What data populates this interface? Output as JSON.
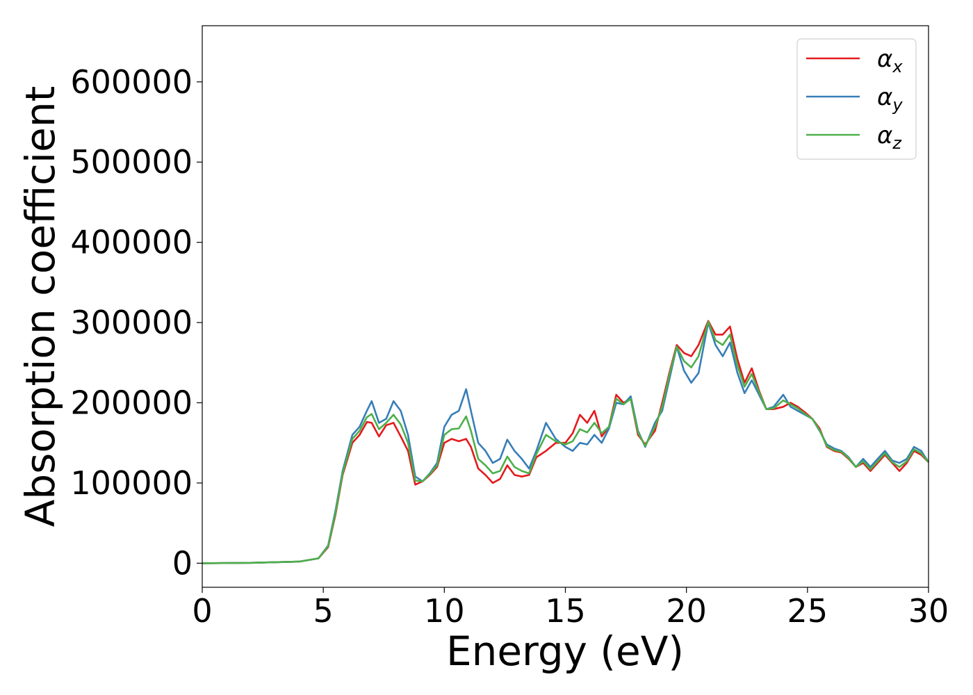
{
  "chart_data": {
    "type": "line",
    "title": "",
    "xlabel": "Energy (eV)",
    "ylabel": "Absorption coefficient",
    "xlim": [
      0,
      30
    ],
    "ylim": [
      -30000,
      670000
    ],
    "xticks": [
      0,
      5,
      10,
      15,
      20,
      25,
      30
    ],
    "xtick_labels": [
      "0",
      "5",
      "10",
      "15",
      "20",
      "25",
      "30"
    ],
    "yticks": [
      0,
      100000,
      200000,
      300000,
      400000,
      500000,
      600000
    ],
    "ytick_labels": [
      "0",
      "100000",
      "200000",
      "300000",
      "400000",
      "500000",
      "600000"
    ],
    "grid": false,
    "legend_position": "top-right",
    "series": [
      {
        "name": "α",
        "subscript": "x",
        "color": "#e41a1c",
        "x": [
          0,
          2,
          4,
          4.8,
          5.2,
          5.5,
          5.8,
          6.2,
          6.5,
          6.8,
          7.0,
          7.3,
          7.6,
          7.9,
          8.2,
          8.5,
          8.8,
          9.1,
          9.4,
          9.7,
          10.0,
          10.3,
          10.6,
          10.9,
          11.1,
          11.4,
          11.7,
          12.0,
          12.3,
          12.6,
          12.9,
          13.2,
          13.5,
          13.8,
          14.2,
          14.6,
          15.0,
          15.3,
          15.6,
          15.9,
          16.2,
          16.5,
          16.8,
          17.1,
          17.4,
          17.7,
          18.0,
          18.3,
          18.7,
          19.0,
          19.3,
          19.6,
          19.9,
          20.2,
          20.5,
          20.9,
          21.2,
          21.5,
          21.8,
          22.1,
          22.4,
          22.7,
          23.0,
          23.3,
          23.6,
          24.0,
          24.3,
          24.6,
          24.9,
          25.2,
          25.5,
          25.8,
          26.1,
          26.4,
          26.7,
          27.0,
          27.3,
          27.6,
          27.9,
          28.2,
          28.5,
          28.8,
          29.1,
          29.4,
          29.7,
          30.0
        ],
        "values": [
          0,
          500,
          2000,
          6000,
          20000,
          60000,
          110000,
          150000,
          160000,
          176000,
          175000,
          158000,
          172000,
          175000,
          158000,
          140000,
          98000,
          102000,
          110000,
          120000,
          150000,
          155000,
          152000,
          155000,
          145000,
          118000,
          110000,
          100000,
          105000,
          122000,
          110000,
          108000,
          110000,
          132000,
          140000,
          150000,
          150000,
          162000,
          185000,
          175000,
          190000,
          158000,
          170000,
          210000,
          200000,
          205000,
          160000,
          148000,
          165000,
          200000,
          238000,
          272000,
          262000,
          258000,
          272000,
          302000,
          285000,
          285000,
          295000,
          255000,
          225000,
          243000,
          215000,
          192000,
          192000,
          195000,
          200000,
          195000,
          188000,
          180000,
          168000,
          145000,
          140000,
          138000,
          130000,
          120000,
          125000,
          115000,
          125000,
          135000,
          125000,
          115000,
          125000,
          140000,
          135000,
          126000
        ]
      },
      {
        "name": "α",
        "subscript": "y",
        "color": "#377eb8",
        "x": [
          0,
          2,
          4,
          4.8,
          5.2,
          5.5,
          5.8,
          6.2,
          6.5,
          6.8,
          7.0,
          7.3,
          7.6,
          7.9,
          8.2,
          8.5,
          8.8,
          9.1,
          9.4,
          9.7,
          10.0,
          10.3,
          10.6,
          10.9,
          11.1,
          11.4,
          11.7,
          12.0,
          12.3,
          12.6,
          12.9,
          13.2,
          13.5,
          13.8,
          14.2,
          14.6,
          15.0,
          15.3,
          15.6,
          15.9,
          16.2,
          16.5,
          16.8,
          17.1,
          17.4,
          17.7,
          18.0,
          18.3,
          18.7,
          19.0,
          19.3,
          19.6,
          19.9,
          20.2,
          20.5,
          20.9,
          21.2,
          21.5,
          21.8,
          22.1,
          22.4,
          22.7,
          23.0,
          23.3,
          23.6,
          24.0,
          24.3,
          24.6,
          24.9,
          25.2,
          25.5,
          25.8,
          26.1,
          26.4,
          26.7,
          27.0,
          27.3,
          27.6,
          27.9,
          28.2,
          28.5,
          28.8,
          29.1,
          29.4,
          29.7,
          30.0
        ],
        "values": [
          0,
          500,
          2000,
          6000,
          22000,
          65000,
          115000,
          160000,
          170000,
          190000,
          202000,
          175000,
          180000,
          202000,
          190000,
          160000,
          108000,
          102000,
          112000,
          125000,
          170000,
          185000,
          190000,
          217000,
          190000,
          150000,
          140000,
          125000,
          130000,
          154000,
          140000,
          130000,
          118000,
          140000,
          175000,
          155000,
          145000,
          140000,
          150000,
          148000,
          160000,
          150000,
          168000,
          200000,
          198000,
          208000,
          165000,
          145000,
          175000,
          190000,
          230000,
          270000,
          240000,
          225000,
          237000,
          300000,
          272000,
          258000,
          275000,
          238000,
          212000,
          228000,
          210000,
          192000,
          195000,
          210000,
          195000,
          190000,
          185000,
          180000,
          165000,
          148000,
          143000,
          140000,
          132000,
          120000,
          130000,
          120000,
          130000,
          140000,
          128000,
          125000,
          130000,
          145000,
          140000,
          126000
        ]
      },
      {
        "name": "α",
        "subscript": "z",
        "color": "#4daf4a",
        "x": [
          0,
          2,
          4,
          4.8,
          5.2,
          5.5,
          5.8,
          6.2,
          6.5,
          6.8,
          7.0,
          7.3,
          7.6,
          7.9,
          8.2,
          8.5,
          8.8,
          9.1,
          9.4,
          9.7,
          10.0,
          10.3,
          10.6,
          10.9,
          11.1,
          11.4,
          11.7,
          12.0,
          12.3,
          12.6,
          12.9,
          13.2,
          13.5,
          13.8,
          14.2,
          14.6,
          15.0,
          15.3,
          15.6,
          15.9,
          16.2,
          16.5,
          16.8,
          17.1,
          17.4,
          17.7,
          18.0,
          18.3,
          18.7,
          19.0,
          19.3,
          19.6,
          19.9,
          20.2,
          20.5,
          20.9,
          21.2,
          21.5,
          21.8,
          22.1,
          22.4,
          22.7,
          23.0,
          23.3,
          23.6,
          24.0,
          24.3,
          24.6,
          24.9,
          25.2,
          25.5,
          25.8,
          26.1,
          26.4,
          26.7,
          27.0,
          27.3,
          27.6,
          27.9,
          28.2,
          28.5,
          28.8,
          29.1,
          29.4,
          29.7,
          30.0
        ],
        "values": [
          0,
          500,
          2000,
          6000,
          21000,
          62000,
          112000,
          155000,
          165000,
          182000,
          186000,
          167000,
          175000,
          185000,
          173000,
          150000,
          103000,
          102000,
          111000,
          122000,
          160000,
          167000,
          168000,
          183000,
          165000,
          130000,
          122000,
          112000,
          115000,
          133000,
          120000,
          115000,
          112000,
          136000,
          160000,
          152000,
          148000,
          152000,
          167000,
          163000,
          175000,
          162000,
          170000,
          205000,
          198000,
          205000,
          163000,
          146000,
          170000,
          195000,
          235000,
          270000,
          252000,
          244000,
          258000,
          301000,
          278000,
          272000,
          285000,
          247000,
          220000,
          236000,
          213000,
          192000,
          193000,
          203000,
          198000,
          193000,
          186000,
          180000,
          166000,
          146000,
          141000,
          139000,
          131000,
          120000,
          127000,
          117000,
          127000,
          137000,
          126000,
          120000,
          127000,
          142000,
          137000,
          126000
        ]
      }
    ]
  }
}
